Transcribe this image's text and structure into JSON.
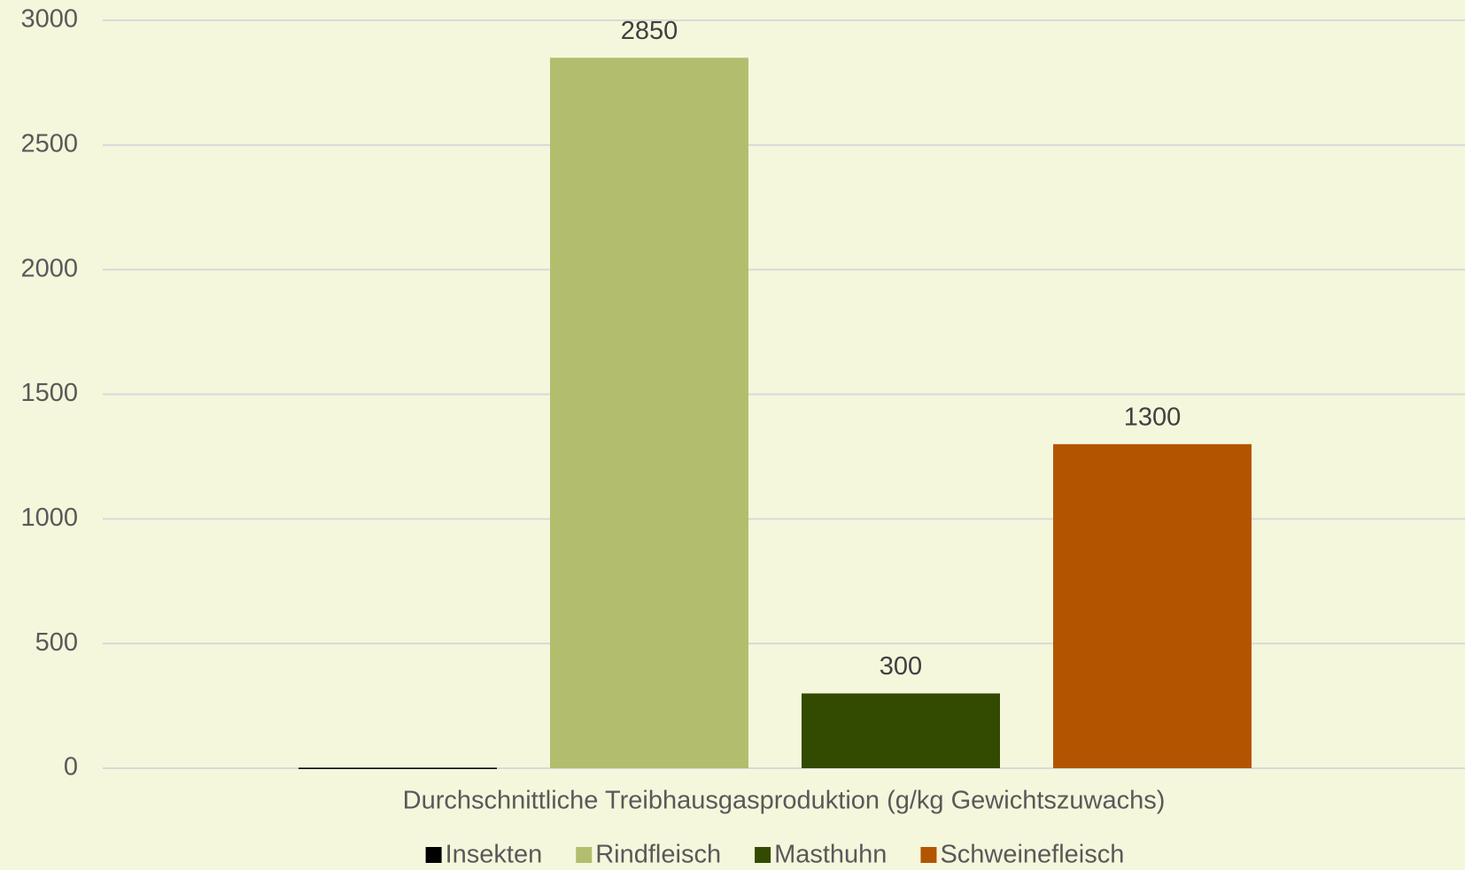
{
  "chart_data": {
    "type": "bar",
    "categories": [
      "Durchschnittliche Treibhausgasproduktion (g/kg Gewichtszuwachs)"
    ],
    "series": [
      {
        "name": "Insekten",
        "color": "#000000",
        "values": [
          2
        ],
        "show_label": false
      },
      {
        "name": "Rindfleisch",
        "color": "#b3bd6e",
        "values": [
          2850
        ],
        "show_label": true
      },
      {
        "name": "Masthuhn",
        "color": "#324b00",
        "values": [
          300
        ],
        "show_label": true
      },
      {
        "name": "Schweinefleisch",
        "color": "#b35500",
        "values": [
          1300
        ],
        "show_label": true
      }
    ],
    "ylim": [
      0,
      3000
    ],
    "yticks": [
      0,
      500,
      1000,
      1500,
      2000,
      2500,
      3000
    ],
    "grid": true,
    "legend": "bottom"
  }
}
